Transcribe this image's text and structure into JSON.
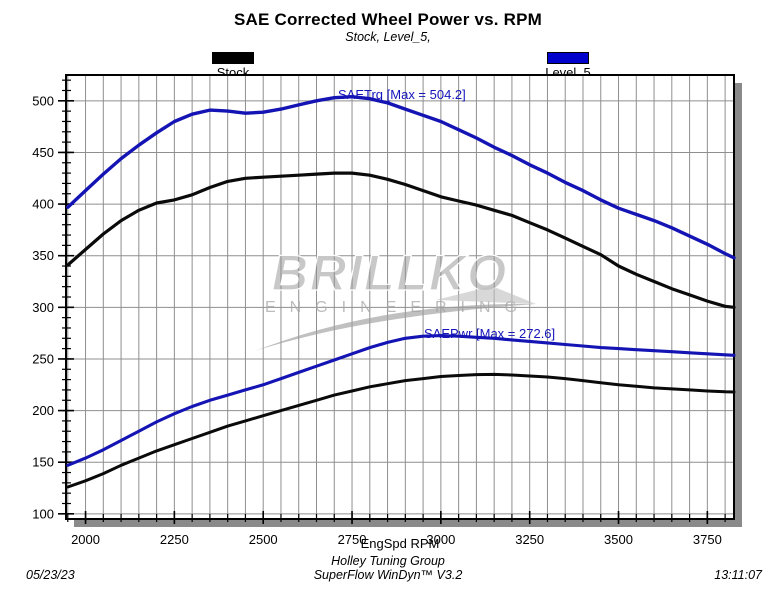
{
  "page": {
    "title": "SAE Corrected Wheel Power vs. RPM",
    "subtitle": "Stock, Level_5,"
  },
  "legend": {
    "items": [
      {
        "label": "Stock",
        "color": "#000000"
      },
      {
        "label": "Level_5",
        "color": "#0000cc"
      }
    ]
  },
  "watermark": {
    "line1": "BRILLKO",
    "line2": "ENGINEERING"
  },
  "footer": {
    "date": "05/23/23",
    "group": "Holley Tuning Group",
    "software": "SuperFlow WinDyn™ V3.2",
    "time": "13:11:07"
  },
  "chart_data": {
    "type": "line",
    "title": "SAE Corrected Wheel Power vs. RPM",
    "subtitle": "Stock, Level_5,",
    "xlabel": "EngSpd RPM",
    "ylabel": "",
    "xlim": [
      1945,
      3825
    ],
    "ylim": [
      95,
      525
    ],
    "x_major_ticks": [
      2000,
      2250,
      2500,
      2750,
      3000,
      3250,
      3500,
      3750
    ],
    "x_minor_step": 50,
    "y_major_ticks": [
      100,
      150,
      200,
      250,
      300,
      350,
      400,
      450,
      500
    ],
    "y_minor_step": 10,
    "grid": {
      "on": true,
      "color": "#8f8f8f",
      "x_step": 50,
      "y_step": 50
    },
    "legend_position": "top",
    "annotations": [
      {
        "text": "SAETrq [Max = 504.2]",
        "color": "#1414bb"
      },
      {
        "text": "SAEPwr [Max = 272.6]",
        "color": "#1414bb"
      }
    ],
    "series": [
      {
        "name": "Level_5 SAETrq",
        "color": "#1414b4",
        "width": 3.4,
        "max": 504.2,
        "points": [
          [
            1950,
            397
          ],
          [
            2000,
            413
          ],
          [
            2050,
            429
          ],
          [
            2100,
            444
          ],
          [
            2150,
            457
          ],
          [
            2200,
            469
          ],
          [
            2250,
            480
          ],
          [
            2300,
            487
          ],
          [
            2350,
            491
          ],
          [
            2400,
            490
          ],
          [
            2450,
            488
          ],
          [
            2500,
            489
          ],
          [
            2550,
            492
          ],
          [
            2600,
            496
          ],
          [
            2650,
            500
          ],
          [
            2700,
            503
          ],
          [
            2750,
            504
          ],
          [
            2800,
            502
          ],
          [
            2850,
            498
          ],
          [
            2900,
            492
          ],
          [
            2950,
            486
          ],
          [
            3000,
            480
          ],
          [
            3050,
            472
          ],
          [
            3100,
            464
          ],
          [
            3150,
            455
          ],
          [
            3200,
            447
          ],
          [
            3250,
            438
          ],
          [
            3300,
            430
          ],
          [
            3350,
            421
          ],
          [
            3400,
            413
          ],
          [
            3450,
            404
          ],
          [
            3500,
            396
          ],
          [
            3550,
            390
          ],
          [
            3600,
            384
          ],
          [
            3650,
            377
          ],
          [
            3700,
            369
          ],
          [
            3750,
            361
          ],
          [
            3800,
            352
          ],
          [
            3825,
            348
          ]
        ]
      },
      {
        "name": "Stock SAETrq",
        "color": "#0a0a0a",
        "width": 3.2,
        "max": 430,
        "points": [
          [
            1950,
            341
          ],
          [
            2000,
            356
          ],
          [
            2050,
            371
          ],
          [
            2100,
            384
          ],
          [
            2150,
            394
          ],
          [
            2200,
            401
          ],
          [
            2250,
            404
          ],
          [
            2300,
            409
          ],
          [
            2350,
            416
          ],
          [
            2400,
            422
          ],
          [
            2450,
            425
          ],
          [
            2500,
            426
          ],
          [
            2550,
            427
          ],
          [
            2600,
            428
          ],
          [
            2650,
            429
          ],
          [
            2700,
            430
          ],
          [
            2750,
            430
          ],
          [
            2800,
            428
          ],
          [
            2850,
            424
          ],
          [
            2900,
            419
          ],
          [
            2950,
            413
          ],
          [
            3000,
            407
          ],
          [
            3050,
            403
          ],
          [
            3100,
            399
          ],
          [
            3150,
            394
          ],
          [
            3200,
            389
          ],
          [
            3250,
            382
          ],
          [
            3300,
            375
          ],
          [
            3350,
            367
          ],
          [
            3400,
            359
          ],
          [
            3450,
            351
          ],
          [
            3500,
            340
          ],
          [
            3550,
            332
          ],
          [
            3600,
            325
          ],
          [
            3650,
            318
          ],
          [
            3700,
            312
          ],
          [
            3750,
            306
          ],
          [
            3800,
            301
          ],
          [
            3825,
            300
          ]
        ]
      },
      {
        "name": "Level_5 SAEPwr",
        "color": "#1414b4",
        "width": 3.1,
        "max": 272.6,
        "points": [
          [
            1950,
            147
          ],
          [
            2000,
            154
          ],
          [
            2050,
            162
          ],
          [
            2100,
            171
          ],
          [
            2150,
            180
          ],
          [
            2200,
            189
          ],
          [
            2250,
            197
          ],
          [
            2300,
            204
          ],
          [
            2350,
            210
          ],
          [
            2400,
            215
          ],
          [
            2450,
            220
          ],
          [
            2500,
            225
          ],
          [
            2550,
            231
          ],
          [
            2600,
            237
          ],
          [
            2650,
            243
          ],
          [
            2700,
            249
          ],
          [
            2750,
            255
          ],
          [
            2800,
            261
          ],
          [
            2850,
            266
          ],
          [
            2900,
            270
          ],
          [
            2950,
            272
          ],
          [
            3000,
            272.6
          ],
          [
            3050,
            272
          ],
          [
            3100,
            271
          ],
          [
            3150,
            270
          ],
          [
            3200,
            268.5
          ],
          [
            3250,
            267
          ],
          [
            3300,
            265.5
          ],
          [
            3350,
            264
          ],
          [
            3400,
            262.5
          ],
          [
            3450,
            261
          ],
          [
            3500,
            260
          ],
          [
            3550,
            259
          ],
          [
            3600,
            258
          ],
          [
            3650,
            257
          ],
          [
            3700,
            256
          ],
          [
            3750,
            255
          ],
          [
            3800,
            254
          ],
          [
            3825,
            253.5
          ]
        ]
      },
      {
        "name": "Stock SAEPwr",
        "color": "#0a0a0a",
        "width": 3.0,
        "max": 235,
        "points": [
          [
            1950,
            126
          ],
          [
            2000,
            132
          ],
          [
            2050,
            139
          ],
          [
            2100,
            147
          ],
          [
            2150,
            154
          ],
          [
            2200,
            161
          ],
          [
            2250,
            167
          ],
          [
            2300,
            173
          ],
          [
            2350,
            179
          ],
          [
            2400,
            185
          ],
          [
            2450,
            190
          ],
          [
            2500,
            195
          ],
          [
            2550,
            200
          ],
          [
            2600,
            205
          ],
          [
            2650,
            210
          ],
          [
            2700,
            215
          ],
          [
            2750,
            219
          ],
          [
            2800,
            223
          ],
          [
            2850,
            226
          ],
          [
            2900,
            229
          ],
          [
            2950,
            231
          ],
          [
            3000,
            233
          ],
          [
            3050,
            234
          ],
          [
            3100,
            234.8
          ],
          [
            3150,
            235
          ],
          [
            3200,
            234.5
          ],
          [
            3250,
            233.5
          ],
          [
            3300,
            232.5
          ],
          [
            3350,
            231
          ],
          [
            3400,
            229
          ],
          [
            3450,
            227
          ],
          [
            3500,
            225
          ],
          [
            3550,
            223.5
          ],
          [
            3600,
            222
          ],
          [
            3650,
            221
          ],
          [
            3700,
            220
          ],
          [
            3750,
            219
          ],
          [
            3800,
            218.2
          ],
          [
            3825,
            218
          ]
        ]
      }
    ]
  },
  "colors": {
    "plot_shadow": "#8a8a8a",
    "frame": "#000000",
    "grid": "#8f8f8f"
  }
}
